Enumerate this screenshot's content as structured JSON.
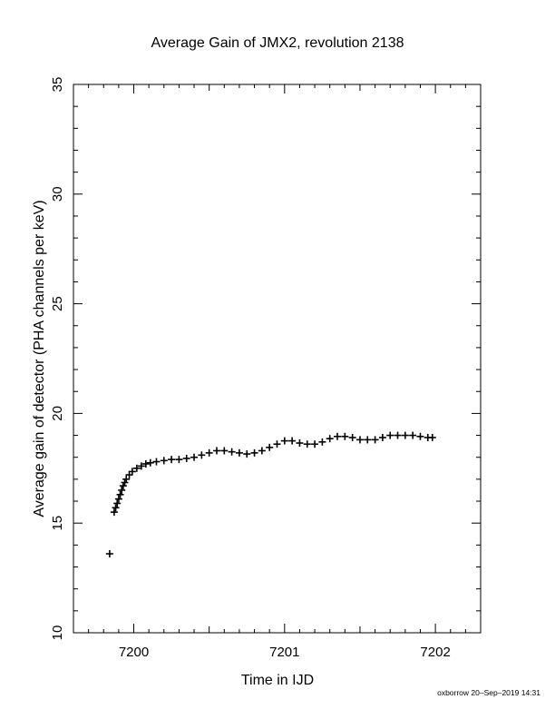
{
  "chart_data": {
    "type": "scatter",
    "title": "Average Gain of JMX2, revolution 2138",
    "xlabel": "Time in IJD",
    "ylabel": "Average gain of detector (PHA channels per keV)",
    "xlim": [
      7199.6,
      7202.3
    ],
    "ylim": [
      10,
      35
    ],
    "xticks": [
      7200,
      7201,
      7202
    ],
    "yticks": [
      10,
      15,
      20,
      25,
      30,
      35
    ],
    "grid": false,
    "marker": "plus",
    "color": "#000000",
    "series": [
      {
        "x": [
          7199.84,
          7199.87,
          7199.88,
          7199.89,
          7199.9,
          7199.91,
          7199.92,
          7199.93,
          7199.94,
          7199.95,
          7199.97,
          7199.99,
          7200.02,
          7200.05,
          7200.08,
          7200.11,
          7200.15,
          7200.2,
          7200.25,
          7200.3,
          7200.35,
          7200.4,
          7200.45,
          7200.5,
          7200.55,
          7200.6,
          7200.65,
          7200.7,
          7200.75,
          7200.8,
          7200.85,
          7200.9,
          7200.95,
          7201.0,
          7201.05,
          7201.1,
          7201.15,
          7201.2,
          7201.25,
          7201.3,
          7201.35,
          7201.4,
          7201.45,
          7201.5,
          7201.55,
          7201.6,
          7201.65,
          7201.7,
          7201.75,
          7201.8,
          7201.85,
          7201.9,
          7201.95,
          7201.98
        ],
        "y": [
          13.6,
          15.5,
          15.7,
          15.9,
          16.1,
          16.3,
          16.5,
          16.7,
          16.85,
          17.0,
          17.2,
          17.35,
          17.5,
          17.6,
          17.7,
          17.75,
          17.8,
          17.85,
          17.9,
          17.9,
          17.95,
          18.0,
          18.1,
          18.2,
          18.3,
          18.3,
          18.25,
          18.2,
          18.15,
          18.2,
          18.3,
          18.45,
          18.6,
          18.75,
          18.75,
          18.65,
          18.6,
          18.6,
          18.7,
          18.85,
          18.95,
          18.95,
          18.9,
          18.8,
          18.8,
          18.8,
          18.9,
          19.0,
          19.0,
          19.0,
          19.0,
          18.95,
          18.9,
          18.9
        ]
      }
    ]
  },
  "footer": "oxborrow 20–Sep–2019 14:31"
}
